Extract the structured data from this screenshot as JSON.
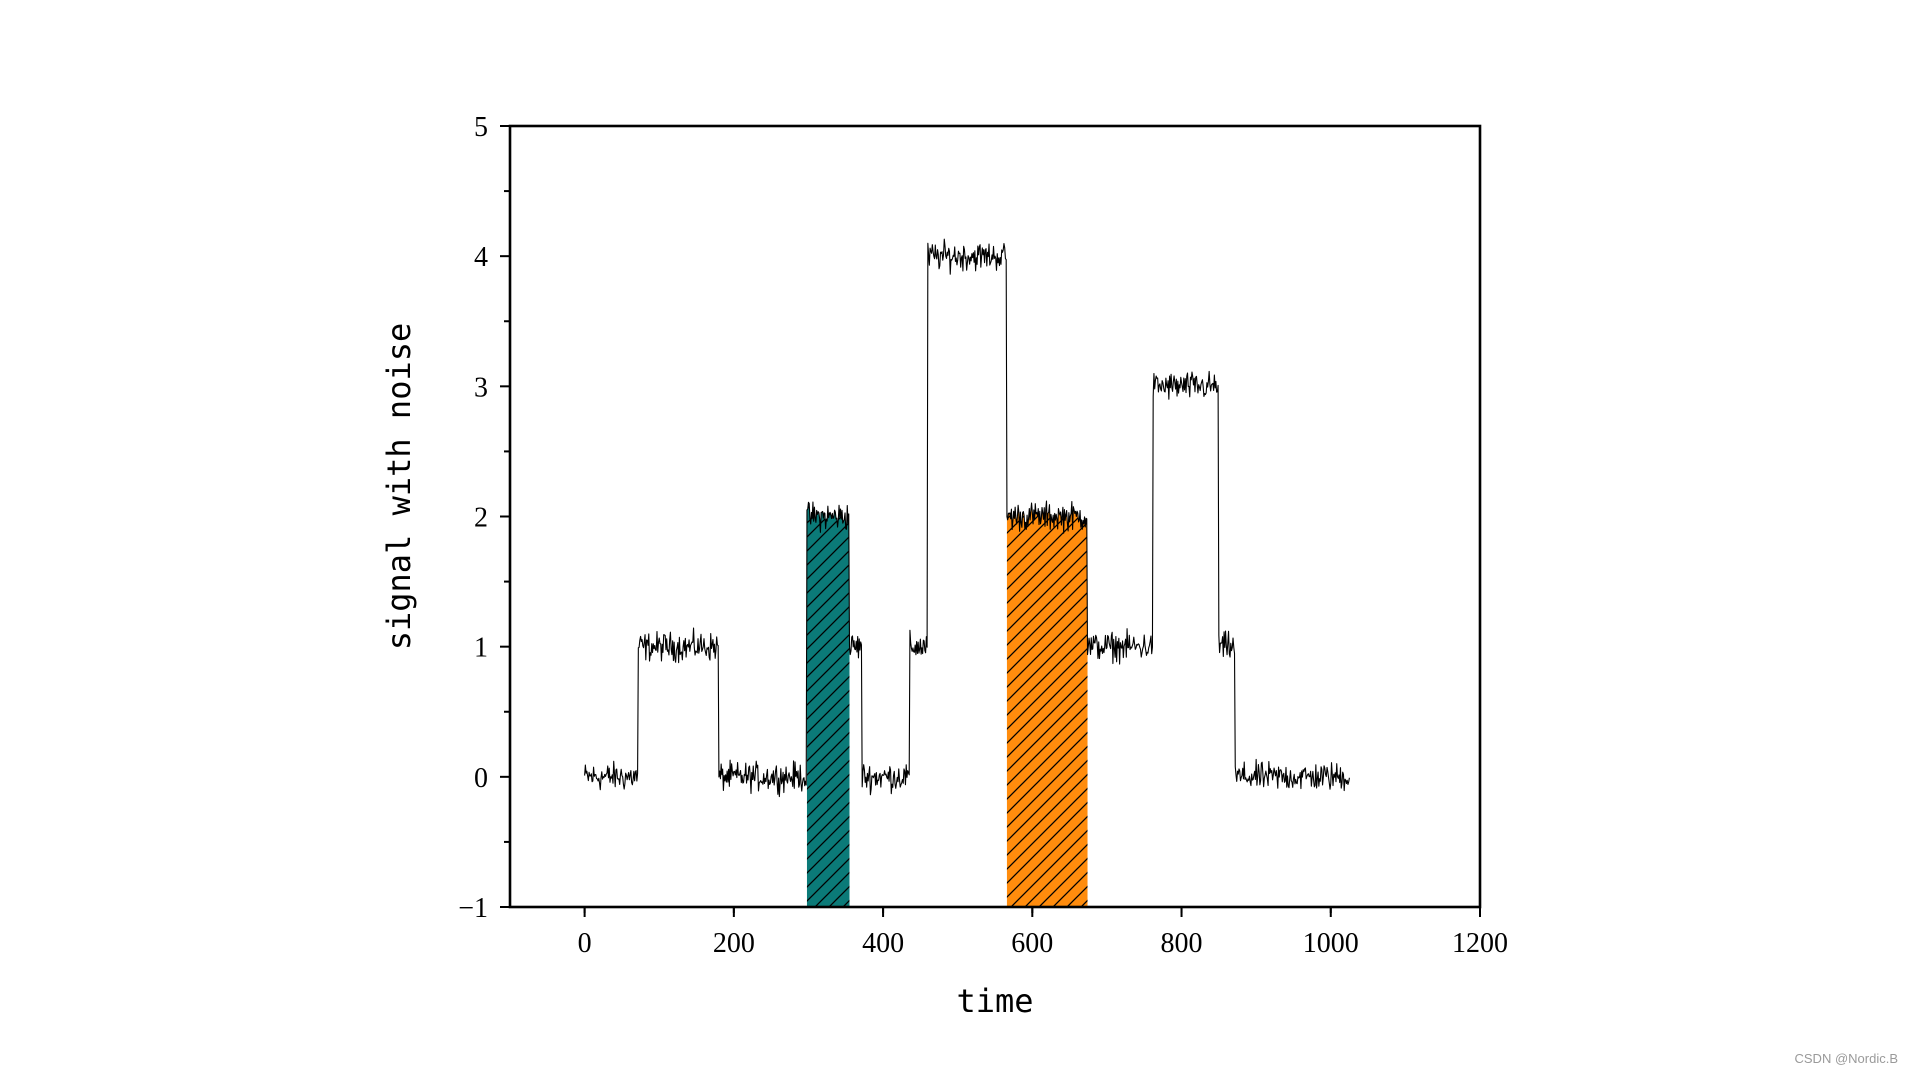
{
  "chart_data": {
    "type": "line",
    "xlabel": "time",
    "ylabel": "signal with noise",
    "xlim": [
      -100,
      1200
    ],
    "ylim": [
      -1,
      5
    ],
    "x_ticks": [
      0,
      200,
      400,
      600,
      800,
      1000,
      1200
    ],
    "x_tick_labels": [
      "0",
      "200",
      "400",
      "600",
      "800",
      "1000",
      "1200"
    ],
    "y_ticks": [
      -1,
      0,
      1,
      2,
      3,
      4,
      5
    ],
    "y_tick_labels": [
      "−1",
      "0",
      "1",
      "2",
      "3",
      "4",
      "5"
    ],
    "grid": false,
    "legend": "none",
    "series": [
      {
        "color": "#000000",
        "noise_amplitude": 0.1,
        "segments": [
          {
            "x_start": 0,
            "x_end": 72,
            "y": 0.0
          },
          {
            "x_start": 72,
            "x_end": 180,
            "y": 1.0
          },
          {
            "x_start": 180,
            "x_end": 298,
            "y": 0.0
          },
          {
            "x_start": 298,
            "x_end": 355,
            "y": 2.0
          },
          {
            "x_start": 355,
            "x_end": 372,
            "y": 1.0
          },
          {
            "x_start": 372,
            "x_end": 436,
            "y": 0.0
          },
          {
            "x_start": 436,
            "x_end": 460,
            "y": 1.0
          },
          {
            "x_start": 460,
            "x_end": 566,
            "y": 4.0
          },
          {
            "x_start": 566,
            "x_end": 674,
            "y": 2.0
          },
          {
            "x_start": 674,
            "x_end": 762,
            "y": 1.0
          },
          {
            "x_start": 762,
            "x_end": 850,
            "y": 3.0
          },
          {
            "x_start": 850,
            "x_end": 872,
            "y": 1.0
          },
          {
            "x_start": 872,
            "x_end": 1025,
            "y": 0.0
          }
        ]
      }
    ],
    "highlight_regions": [
      {
        "x_start": 298,
        "x_end": 355,
        "fill": "#0b7a78",
        "hatch": "diagonal"
      },
      {
        "x_start": 566,
        "x_end": 674,
        "fill": "#ff8c0d",
        "hatch": "diagonal"
      }
    ]
  },
  "watermark": "CSDN @Nordic.B"
}
